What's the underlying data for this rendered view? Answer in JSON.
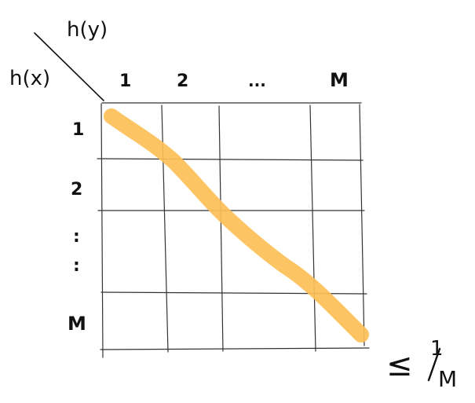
{
  "header": {
    "col_label": "h(y)",
    "row_label": "h(x)"
  },
  "grid": {
    "col_labels": [
      "1",
      "2",
      "...",
      "M"
    ],
    "row_labels": [
      "1",
      "2",
      ":",
      ":",
      "M"
    ]
  },
  "annotation": {
    "symbol": "≤",
    "numerator": "1",
    "denominator": "M"
  },
  "colors": {
    "ink": "#111111",
    "highlight": "#FDBF56"
  }
}
